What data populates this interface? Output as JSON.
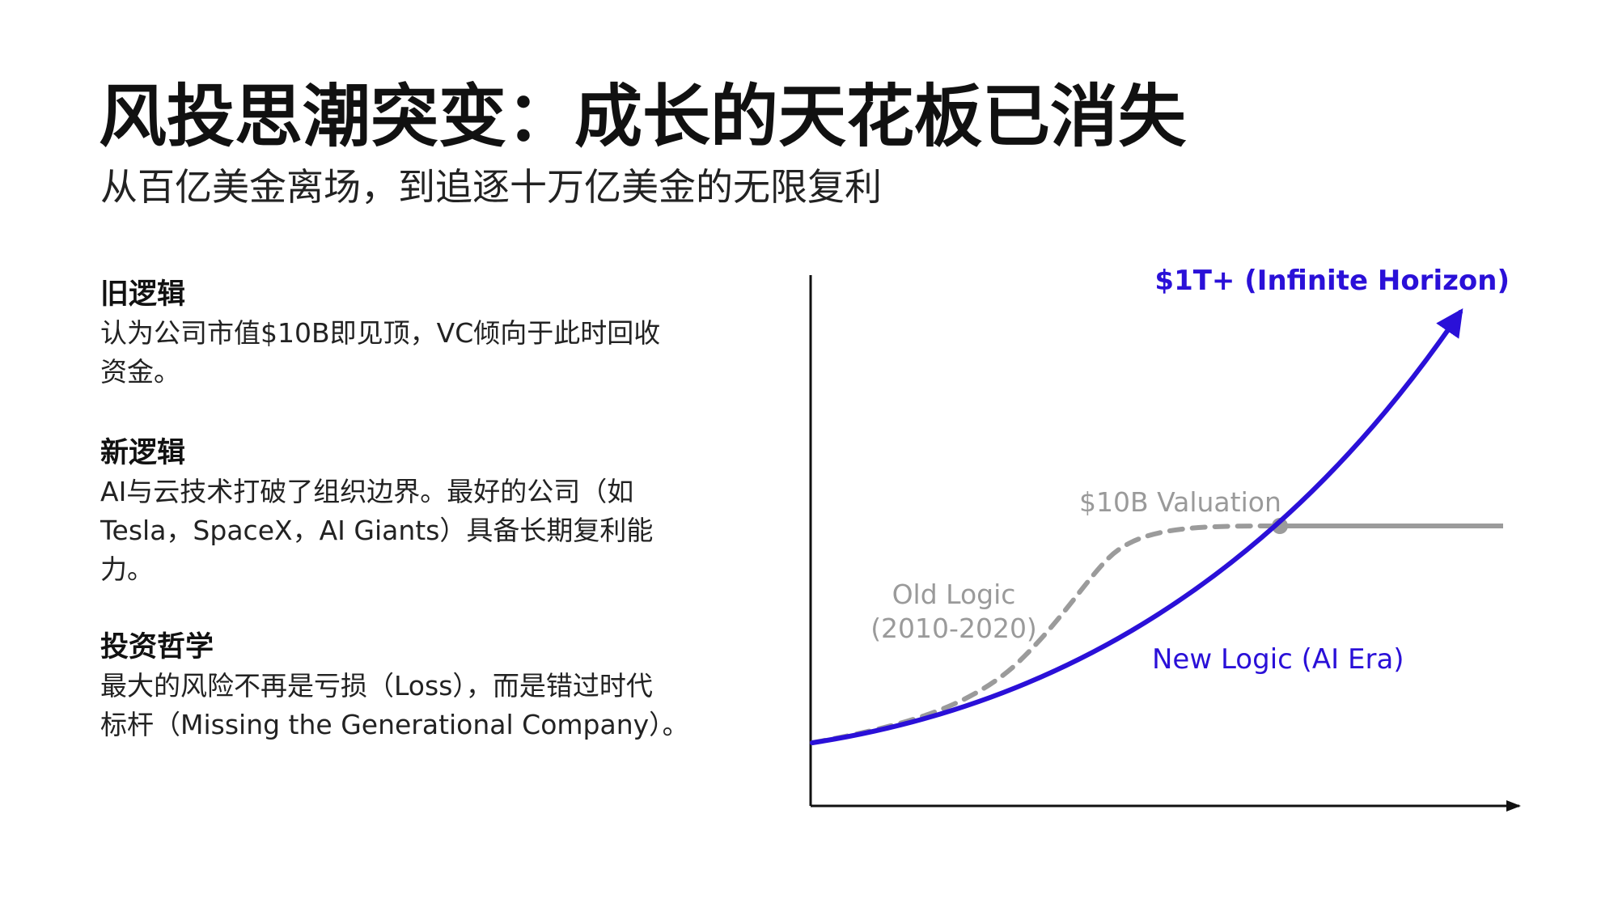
{
  "slide": {
    "title": "风投思潮突变：成长的天花板已消失",
    "subtitle": "从百亿美金离场，到追逐十万亿美金的无限复利"
  },
  "points": [
    {
      "heading": "旧逻辑",
      "body_lines": [
        "认为公司市值$10B即见顶，VC倾向于此时回收",
        "资金。"
      ]
    },
    {
      "heading": "新逻辑",
      "body_lines": [
        "AI与云技术打破了组织边界。最好的公司（如",
        "Tesla，SpaceX，AI Giants）具备长期复利能",
        "力。"
      ]
    },
    {
      "heading": "投资哲学",
      "body_lines": [
        "最大的风险不再是亏损（Loss），而是错过时代",
        "标杆（Missing the Generational Company）。"
      ]
    }
  ],
  "diagram": {
    "top_label": "$1T+ (Infinite Horizon)",
    "ceiling_label": "$10B Valuation",
    "old_logic_label": [
      "Old Logic",
      "(2010-2020)"
    ],
    "new_logic_label": "New Logic (AI Era)",
    "colors": {
      "new_logic": "#2a10d8",
      "old_logic": "#9b9b9b",
      "ceiling": "#9b9b9b",
      "axis": "#111111",
      "muted_text": "#9a9a9a"
    }
  }
}
